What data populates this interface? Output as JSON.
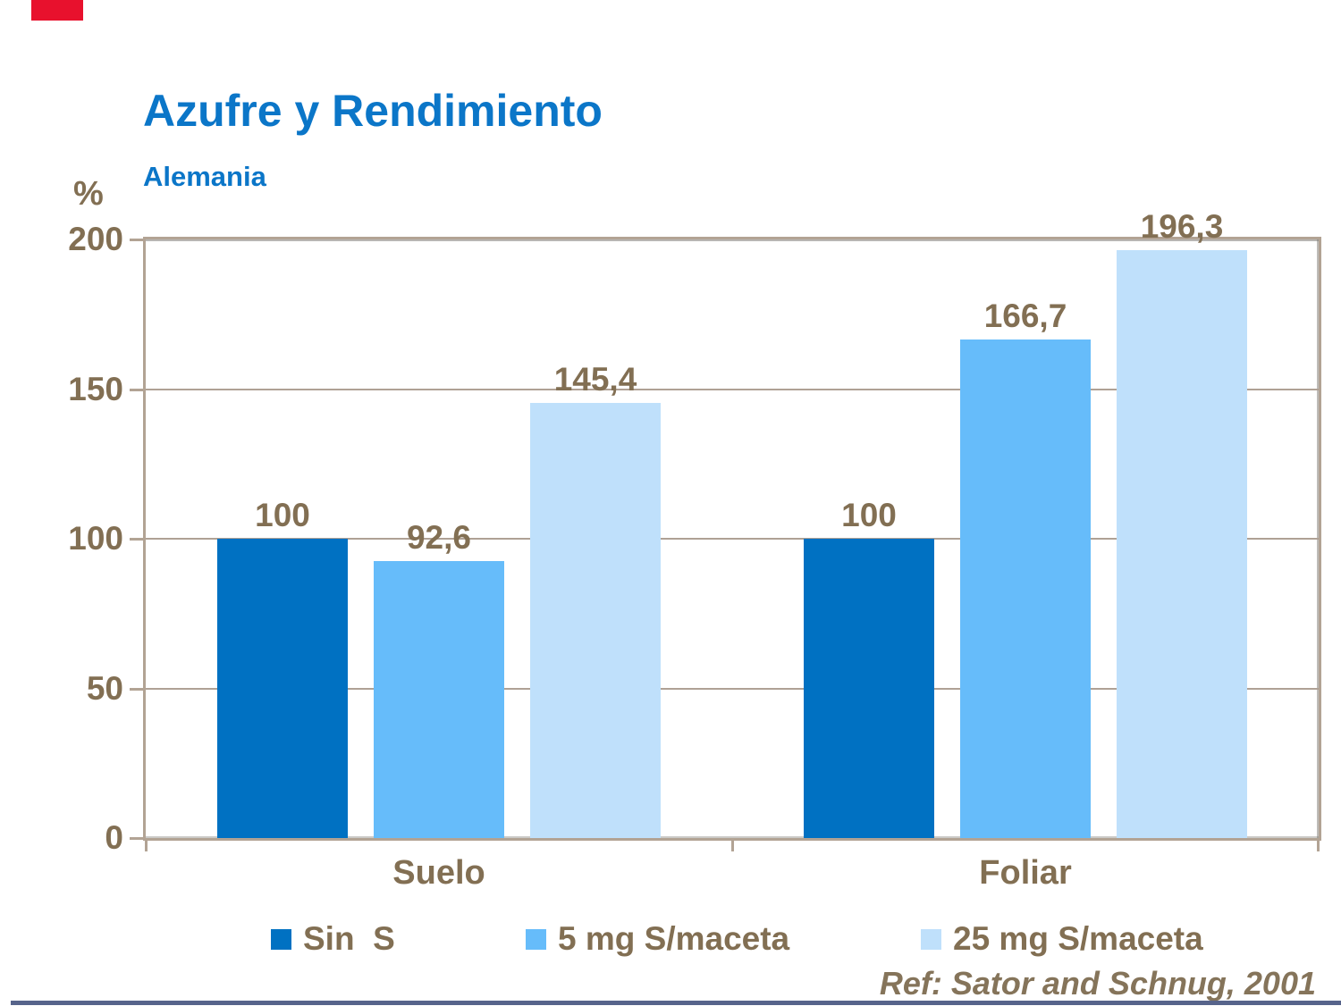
{
  "header": {
    "title": "Azufre y Rendimiento",
    "subtitle": "Alemania"
  },
  "chart_data": {
    "type": "bar",
    "title": "Azufre y Rendimiento",
    "subtitle": "Alemania",
    "unit_label": "%",
    "categories": [
      "Suelo",
      "Foliar"
    ],
    "series": [
      {
        "name": "Sin  S",
        "color": "#0071C2",
        "values": [
          100,
          100
        ],
        "value_labels": [
          "100",
          "100"
        ]
      },
      {
        "name": "5 mg S/maceta",
        "color": "#66BCFA",
        "values": [
          92.6,
          166.7
        ],
        "value_labels": [
          "92,6",
          "166,7"
        ]
      },
      {
        "name": "25 mg S/maceta",
        "color": "#BFE0FB",
        "values": [
          145.4,
          196.3
        ],
        "value_labels": [
          "145,4",
          "196,3"
        ]
      }
    ],
    "ylim": [
      0,
      200
    ],
    "yticks": [
      0,
      50,
      100,
      150,
      200
    ],
    "ytick_labels": [
      "0",
      "50",
      "100",
      "150",
      "200"
    ],
    "grid": "horizontal",
    "legend_position": "bottom"
  },
  "footer": {
    "reference": "Ref: Sator and Schnug, 2001"
  },
  "colors": {
    "title_blue": "#0B76C8",
    "axis_text_brown": "#826F53",
    "frame_tan": "#B2A394",
    "accent_red": "#E8112D",
    "bottom_rule": "#57648B"
  }
}
